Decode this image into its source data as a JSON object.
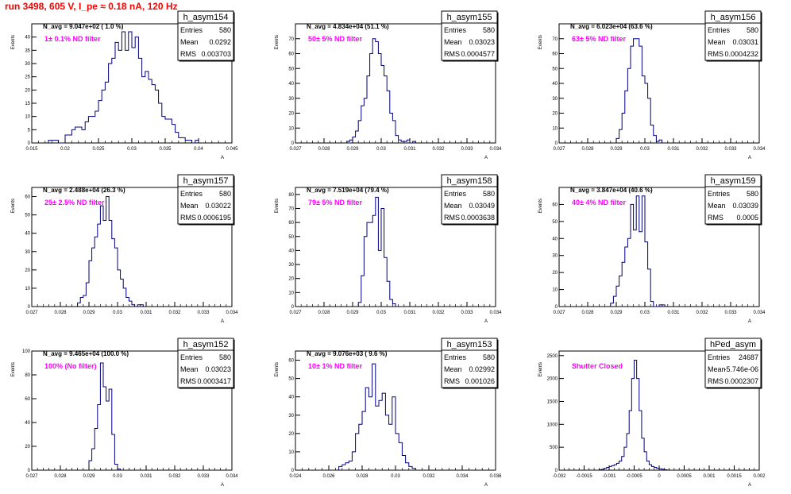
{
  "run_title": "run 3498,   605 V, I_pe ≈ 0.18 nA, 120 Hz",
  "colors": {
    "hist": "#000080",
    "filter_label": "#ff00ff",
    "title_red": "#ff0000"
  },
  "chart_data": [
    {
      "type": "histogram",
      "name": "h_asym154",
      "nlabel": "N_avg = 9.047e+02 ( 1.0 %)",
      "filter": "1± 0.1% ND filter",
      "stats": {
        "Entries": "580",
        "Mean": "0.0292",
        "RMS": "0.003703"
      },
      "ylabel": "Events",
      "xlabel": "A",
      "xlim": [
        0.015,
        0.045
      ],
      "ylim": [
        0,
        45
      ],
      "xticks": [
        0.015,
        0.02,
        0.025,
        0.03,
        0.035,
        0.04,
        0.045
      ],
      "xticklabels": [
        "0.015",
        "0.02",
        "0.025",
        "0.03",
        "0.035",
        "0.04",
        "0.045"
      ],
      "yticks": [
        0,
        5,
        10,
        15,
        20,
        25,
        30,
        35,
        40
      ],
      "yticklabels": [
        "0",
        "5",
        "10",
        "15",
        "20",
        "25",
        "30",
        "35",
        "40"
      ],
      "bin_start": 0.0175,
      "bin_width": 0.0005,
      "values": [
        1,
        1,
        1,
        0,
        0,
        3,
        3,
        5,
        6,
        6,
        5,
        8,
        10,
        10,
        12,
        16,
        20,
        23,
        30,
        32,
        38,
        35,
        42,
        35,
        42,
        36,
        40,
        32,
        25,
        27,
        24,
        22,
        20,
        15,
        10,
        9,
        9,
        7,
        4,
        2,
        2,
        1,
        1,
        0,
        1
      ]
    },
    {
      "type": "histogram",
      "name": "h_asym155",
      "nlabel": "N_avg = 4.834e+04 (51.1 %)",
      "filter": "50± 5% ND filter",
      "stats": {
        "Entries": "580",
        "Mean": "0.03023",
        "RMS": "0.0004577"
      },
      "ylabel": "Events",
      "xlabel": "A",
      "xlim": [
        0.027,
        0.034
      ],
      "ylim": [
        0,
        80
      ],
      "xticks": [
        0.027,
        0.028,
        0.029,
        0.03,
        0.031,
        0.032,
        0.033,
        0.034
      ],
      "xticklabels": [
        "0.027",
        "0.028",
        "0.029",
        "0.03",
        "0.031",
        "0.032",
        "0.033",
        "0.034"
      ],
      "yticks": [
        0,
        10,
        20,
        30,
        40,
        50,
        60,
        70
      ],
      "yticklabels": [
        "0",
        "10",
        "20",
        "30",
        "40",
        "50",
        "60",
        "70"
      ],
      "bin_start": 0.0288,
      "bin_width": 0.0001,
      "values": [
        1,
        2,
        4,
        8,
        15,
        25,
        30,
        45,
        60,
        70,
        68,
        60,
        52,
        45,
        35,
        20,
        15,
        5,
        2,
        1,
        1,
        2,
        0,
        1
      ]
    },
    {
      "type": "histogram",
      "name": "h_asym156",
      "nlabel": "N_avg = 6.023e+04 (63.6 %)",
      "filter": "63± 5% ND filter",
      "stats": {
        "Entries": "580",
        "Mean": "0.03031",
        "RMS": "0.0004232"
      },
      "ylabel": "Events",
      "xlabel": "A",
      "xlim": [
        0.027,
        0.034
      ],
      "ylim": [
        0,
        80
      ],
      "xticks": [
        0.027,
        0.028,
        0.029,
        0.03,
        0.031,
        0.032,
        0.033,
        0.034
      ],
      "xticklabels": [
        "0.027",
        "0.028",
        "0.029",
        "0.03",
        "0.031",
        "0.032",
        "0.033",
        "0.034"
      ],
      "yticks": [
        0,
        10,
        20,
        30,
        40,
        50,
        60,
        70
      ],
      "yticklabels": [
        "0",
        "10",
        "20",
        "30",
        "40",
        "50",
        "60",
        "70"
      ],
      "bin_start": 0.029,
      "bin_width": 0.0001,
      "values": [
        3,
        9,
        20,
        35,
        50,
        65,
        70,
        70,
        65,
        45,
        40,
        30,
        12,
        5,
        1,
        2
      ]
    },
    {
      "type": "histogram",
      "name": "h_asym157",
      "nlabel": "N_avg = 2.488e+04 (26.3 %)",
      "filter": "25± 2.5% ND filter",
      "stats": {
        "Entries": "580",
        "Mean": "0.03022",
        "RMS": "0.0006195"
      },
      "ylabel": "Events",
      "xlabel": "A",
      "xlim": [
        0.027,
        0.034
      ],
      "ylim": [
        0,
        65
      ],
      "xticks": [
        0.027,
        0.028,
        0.029,
        0.03,
        0.031,
        0.032,
        0.033,
        0.034
      ],
      "xticklabels": [
        "0.027",
        "0.028",
        "0.029",
        "0.03",
        "0.031",
        "0.032",
        "0.033",
        "0.034"
      ],
      "yticks": [
        0,
        10,
        20,
        30,
        40,
        50,
        60
      ],
      "yticklabels": [
        "0",
        "10",
        "20",
        "30",
        "40",
        "50",
        "60"
      ],
      "bin_start": 0.0286,
      "bin_width": 0.0001,
      "values": [
        2,
        5,
        6,
        13,
        25,
        32,
        38,
        45,
        55,
        47,
        60,
        47,
        37,
        32,
        20,
        15,
        10,
        5,
        3,
        1,
        0,
        1,
        1
      ]
    },
    {
      "type": "histogram",
      "name": "h_asym158",
      "nlabel": "N_avg = 7.519e+04 (79.4 %)",
      "filter": "79± 5% ND filter",
      "stats": {
        "Entries": "580",
        "Mean": "0.03049",
        "RMS": "0.0003638"
      },
      "ylabel": "Events",
      "xlabel": "A",
      "xlim": [
        0.027,
        0.034
      ],
      "ylim": [
        0,
        85
      ],
      "xticks": [
        0.027,
        0.028,
        0.029,
        0.03,
        0.031,
        0.032,
        0.033,
        0.034
      ],
      "xticklabels": [
        "0.027",
        "0.028",
        "0.029",
        "0.03",
        "0.031",
        "0.032",
        "0.033",
        "0.034"
      ],
      "yticks": [
        0,
        10,
        20,
        30,
        40,
        50,
        60,
        70,
        80
      ],
      "yticklabels": [
        "0",
        "10",
        "20",
        "30",
        "40",
        "50",
        "60",
        "70",
        "80"
      ],
      "bin_start": 0.0292,
      "bin_width": 0.0001,
      "values": [
        3,
        22,
        50,
        60,
        60,
        65,
        78,
        40,
        70,
        35,
        18,
        5,
        2
      ]
    },
    {
      "type": "histogram",
      "name": "h_asym159",
      "nlabel": "N_avg = 3.847e+04 (40.6 %)",
      "filter": "40± 4% ND filter",
      "stats": {
        "Entries": "580",
        "Mean": "0.03039",
        "RMS": "0.0005"
      },
      "ylabel": "Events",
      "xlabel": "A",
      "xlim": [
        0.027,
        0.034
      ],
      "ylim": [
        0,
        70
      ],
      "xticks": [
        0.027,
        0.028,
        0.029,
        0.03,
        0.031,
        0.032,
        0.033,
        0.034
      ],
      "xticklabels": [
        "0.027",
        "0.028",
        "0.029",
        "0.03",
        "0.031",
        "0.032",
        "0.033",
        "0.034"
      ],
      "yticks": [
        0,
        10,
        20,
        30,
        40,
        50,
        60
      ],
      "yticklabels": [
        "0",
        "10",
        "20",
        "30",
        "40",
        "50",
        "60"
      ],
      "bin_start": 0.0288,
      "bin_width": 0.0001,
      "values": [
        2,
        6,
        12,
        18,
        26,
        35,
        40,
        60,
        45,
        65,
        44,
        65,
        38,
        22,
        3,
        0,
        0,
        1,
        1
      ]
    },
    {
      "type": "histogram",
      "name": "h_asym152",
      "nlabel": "N_avg = 9.465e+04 (100.0 %)",
      "filter": "100% (No filter)",
      "stats": {
        "Entries": "580",
        "Mean": "0.03023",
        "RMS": "0.0003417"
      },
      "ylabel": "Events",
      "xlabel": "A",
      "xlim": [
        0.027,
        0.034
      ],
      "ylim": [
        0,
        100
      ],
      "xticks": [
        0.027,
        0.028,
        0.029,
        0.03,
        0.031,
        0.032,
        0.033,
        0.034
      ],
      "xticklabels": [
        "0.027",
        "0.028",
        "0.029",
        "0.03",
        "0.031",
        "0.032",
        "0.033",
        "0.034"
      ],
      "yticks": [
        0,
        20,
        40,
        60,
        80,
        100
      ],
      "yticklabels": [
        "0",
        "20",
        "40",
        "60",
        "80",
        "100"
      ],
      "bin_start": 0.029,
      "bin_width": 0.0001,
      "values": [
        8,
        18,
        35,
        55,
        90,
        70,
        58,
        68,
        30,
        5,
        1
      ]
    },
    {
      "type": "histogram",
      "name": "h_asym153",
      "nlabel": "N_avg = 9.076e+03 ( 9.6 %)",
      "filter": "10± 1% ND filter",
      "stats": {
        "Entries": "580",
        "Mean": "0.02992",
        "RMS": "0.001026"
      },
      "ylabel": "Events",
      "xlabel": "A",
      "xlim": [
        0.024,
        0.036
      ],
      "ylim": [
        0,
        65
      ],
      "xticks": [
        0.024,
        0.026,
        0.028,
        0.03,
        0.032,
        0.034,
        0.036
      ],
      "xticklabels": [
        "0.024",
        "0.026",
        "0.028",
        "0.03",
        "0.032",
        "0.034",
        "0.036"
      ],
      "yticks": [
        0,
        10,
        20,
        30,
        40,
        50,
        60
      ],
      "yticklabels": [
        "0",
        "10",
        "20",
        "30",
        "40",
        "50",
        "60"
      ],
      "bin_start": 0.0266,
      "bin_width": 0.0002,
      "values": [
        2,
        3,
        4,
        5,
        10,
        20,
        25,
        32,
        45,
        40,
        58,
        35,
        38,
        42,
        30,
        25,
        40,
        20,
        15,
        8,
        4,
        2,
        1
      ]
    },
    {
      "type": "histogram",
      "name": "hPed_asym",
      "nlabel": "",
      "filter": "Shutter Closed",
      "stats": {
        "Entries": "24687",
        "Mean": "-5.746e-06",
        "RMS": "0.0002307"
      },
      "ylabel": "Events",
      "xlabel": "A",
      "xlim": [
        -0.002,
        0.002
      ],
      "ylim": [
        0,
        2600
      ],
      "xticks": [
        -0.002,
        -0.0015,
        -0.001,
        -0.0005,
        0,
        0.0005,
        0.001,
        0.0015,
        0.002
      ],
      "xticklabels": [
        "-0.002",
        "-0.0015",
        "-0.001",
        "-0.0005",
        "0",
        "0.0005",
        "0.001",
        "0.0015",
        "0.002"
      ],
      "yticks": [
        0,
        500,
        1000,
        1500,
        2000,
        2500
      ],
      "yticklabels": [
        "0",
        "500",
        "1000",
        "1500",
        "2000",
        "2500"
      ],
      "bin_start": -0.0012,
      "bin_width": 5e-05,
      "values": [
        10,
        20,
        40,
        60,
        80,
        100,
        120,
        150,
        200,
        300,
        500,
        800,
        1300,
        2000,
        2400,
        2000,
        1300,
        700,
        400,
        200,
        120,
        80,
        60,
        40,
        30,
        20,
        10,
        5
      ]
    }
  ]
}
